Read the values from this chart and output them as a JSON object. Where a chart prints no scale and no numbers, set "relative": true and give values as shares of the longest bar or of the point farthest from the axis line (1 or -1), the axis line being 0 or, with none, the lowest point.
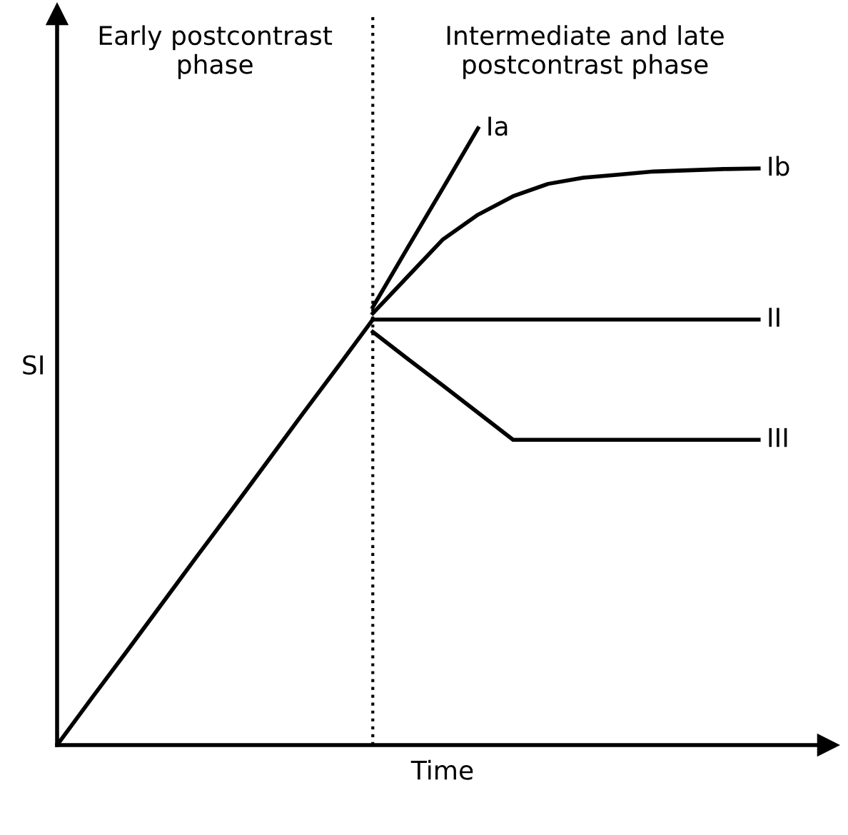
{
  "chart_data": {
    "type": "line",
    "relative": true,
    "xlabel": "Time",
    "ylabel": "SI",
    "categories": [
      null,
      null,
      null,
      null,
      null,
      null,
      null,
      null,
      null,
      null,
      null,
      null,
      null,
      null,
      null,
      null,
      null,
      null,
      null,
      null,
      null
    ],
    "annotations": [
      "Early postcontrast\nphase",
      "Intermediate and late\npostcontrast phase"
    ],
    "series": [
      {
        "color": "#000000",
        "values": [
          0,
          0.077,
          0.153,
          0.23,
          0.307,
          0.383,
          0.46,
          0.537,
          0.613,
          0.69,
          null,
          null,
          null,
          null,
          null,
          null,
          null,
          null,
          null,
          null,
          null
        ]
      },
      {
        "name": "Ia",
        "color": "#000000",
        "values": [
          null,
          null,
          null,
          null,
          null,
          null,
          null,
          null,
          null,
          0.71,
          0.807,
          0.903,
          1,
          null,
          null,
          null,
          null,
          null,
          null,
          null,
          null
        ]
      },
      {
        "name": "Ib",
        "color": "#000000",
        "values": [
          null,
          null,
          null,
          null,
          null,
          null,
          null,
          null,
          null,
          0.7,
          0.76,
          0.82,
          0.86,
          0.89,
          0.91,
          0.92,
          0.925,
          0.93,
          0.932,
          0.934,
          0.935
        ]
      },
      {
        "name": "II",
        "color": "#000000",
        "values": [
          null,
          null,
          null,
          null,
          null,
          null,
          null,
          null,
          null,
          0.69,
          0.69,
          0.69,
          0.69,
          0.69,
          0.69,
          0.69,
          0.69,
          0.69,
          0.69,
          0.69,
          0.69
        ]
      },
      {
        "name": "III",
        "color": "#000000",
        "values": [
          null,
          null,
          null,
          null,
          null,
          null,
          null,
          null,
          null,
          0.67,
          0.626,
          0.583,
          0.539,
          0.495,
          0.495,
          0.495,
          0.495,
          0.495,
          0.495,
          0.495,
          0.495
        ]
      }
    ],
    "legend": false,
    "marker": "none",
    "line_style": "solid"
  }
}
